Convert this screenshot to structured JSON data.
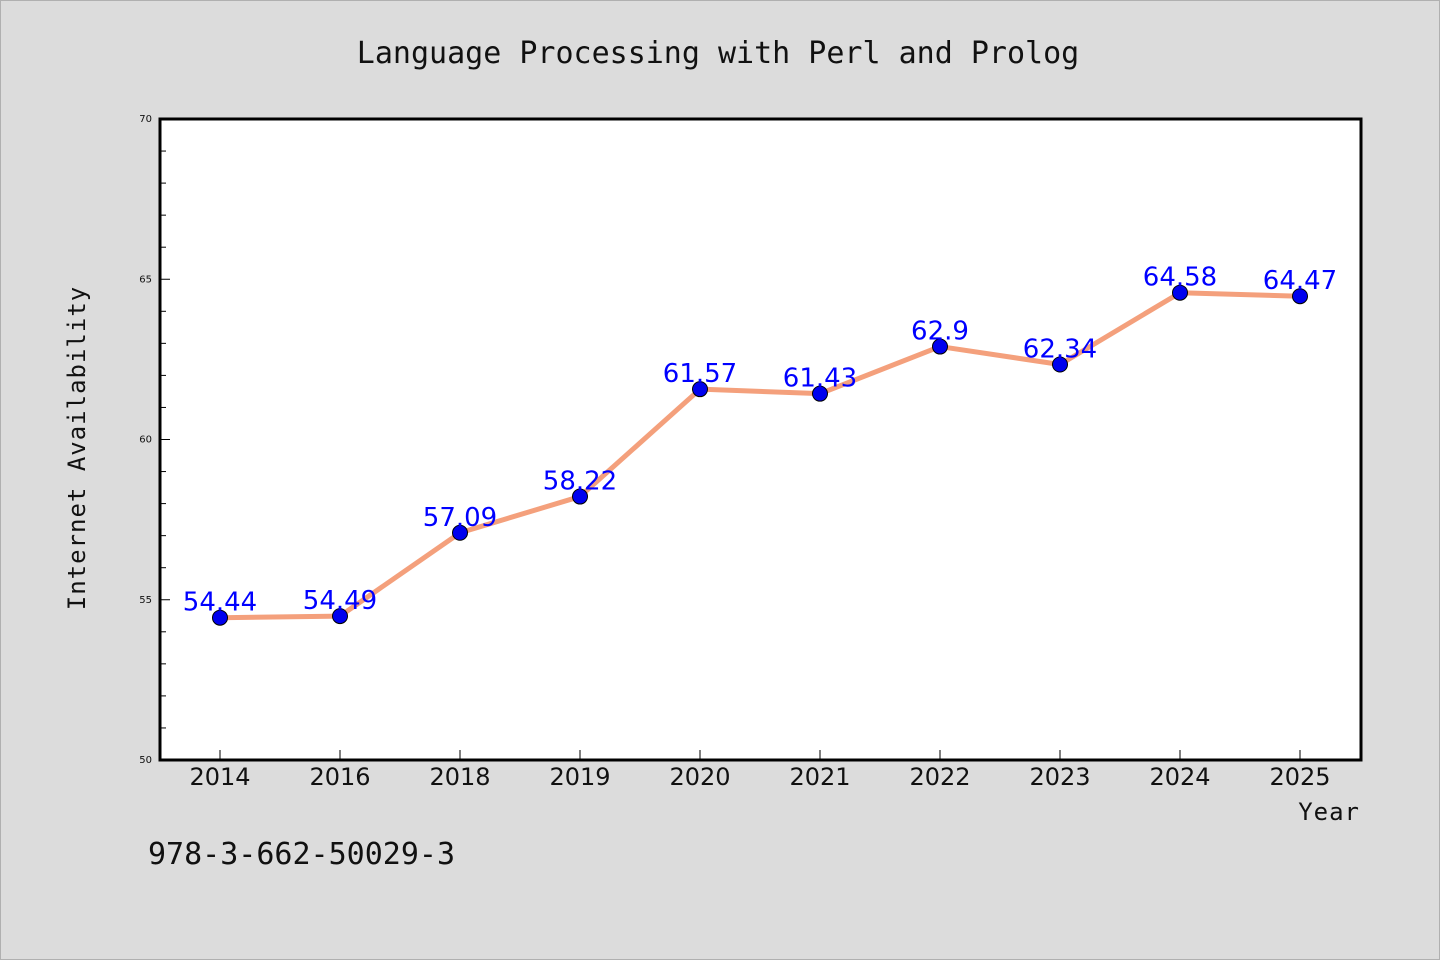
{
  "chart_data": {
    "type": "line",
    "title": "Language Processing with Perl and Prolog",
    "xlabel": "Year",
    "ylabel": "Internet Availability",
    "categories": [
      "2014",
      "2016",
      "2018",
      "2019",
      "2020",
      "2021",
      "2022",
      "2023",
      "2024",
      "2025"
    ],
    "series": [
      {
        "values": [
          54.44,
          54.49,
          57.09,
          58.22,
          61.57,
          61.43,
          62.9,
          62.34,
          64.58,
          64.47
        ],
        "line_color": "#f4a07c",
        "marker_color": "#0000ee"
      }
    ],
    "data_labels": [
      "54.44",
      "54.49",
      "57.09",
      "58.22",
      "61.57",
      "61.43",
      "62.9",
      "62.34",
      "64.58",
      "64.47"
    ],
    "ylim": [
      50,
      70
    ],
    "y_ticks": [
      "50",
      "55",
      "60",
      "65",
      "70"
    ],
    "grid": false,
    "legend": "none",
    "label_color": "#0000ff"
  },
  "footer_text": "978-3-662-50029-3"
}
